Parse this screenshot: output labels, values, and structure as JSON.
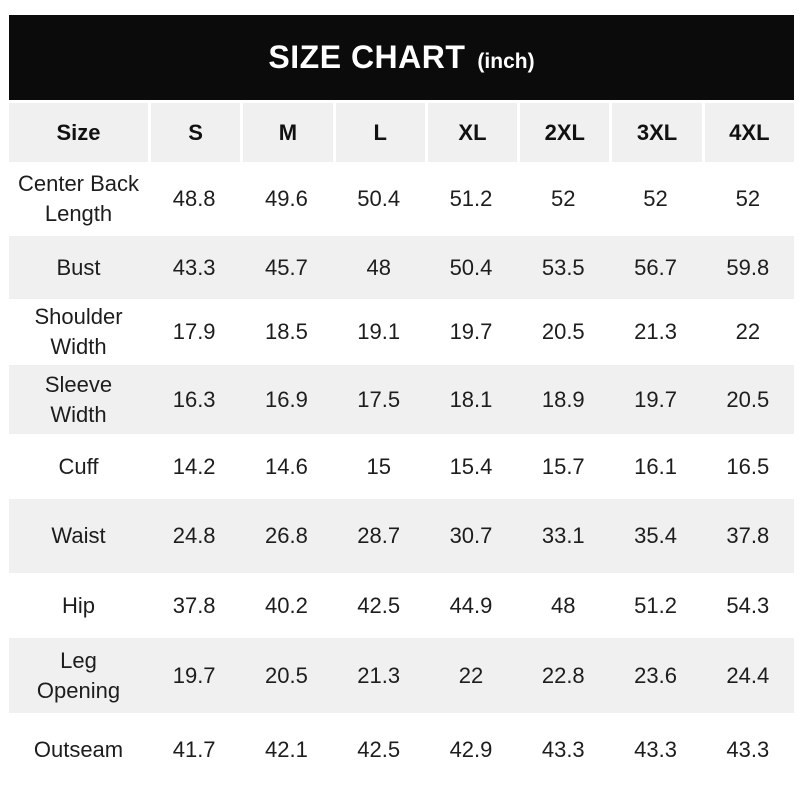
{
  "banner": {
    "title": "SIZE CHART",
    "unit": "(inch)"
  },
  "chart_data": {
    "type": "table",
    "title": "SIZE CHART (inch)",
    "columns": [
      "Size",
      "S",
      "M",
      "L",
      "XL",
      "2XL",
      "3XL",
      "4XL"
    ],
    "rows": [
      {
        "label": "Center Back Length",
        "values": [
          48.8,
          49.6,
          50.4,
          51.2,
          52,
          52,
          52
        ]
      },
      {
        "label": "Bust",
        "values": [
          43.3,
          45.7,
          48,
          50.4,
          53.5,
          56.7,
          59.8
        ]
      },
      {
        "label": "Shoulder Width",
        "values": [
          17.9,
          18.5,
          19.1,
          19.7,
          20.5,
          21.3,
          22
        ]
      },
      {
        "label": "Sleeve Width",
        "values": [
          16.3,
          16.9,
          17.5,
          18.1,
          18.9,
          19.7,
          20.5
        ]
      },
      {
        "label": "Cuff",
        "values": [
          14.2,
          14.6,
          15,
          15.4,
          15.7,
          16.1,
          16.5
        ]
      },
      {
        "label": "Waist",
        "values": [
          24.8,
          26.8,
          28.7,
          30.7,
          33.1,
          35.4,
          37.8
        ]
      },
      {
        "label": "Hip",
        "values": [
          37.8,
          40.2,
          42.5,
          44.9,
          48,
          51.2,
          54.3
        ]
      },
      {
        "label": "Leg Opening",
        "values": [
          19.7,
          20.5,
          21.3,
          22,
          22.8,
          23.6,
          24.4
        ]
      },
      {
        "label": "Outseam",
        "values": [
          41.7,
          42.1,
          42.5,
          42.9,
          43.3,
          43.3,
          43.3
        ]
      }
    ]
  },
  "colors": {
    "banner_bg": "#0b0b0b",
    "banner_text": "#ffffff",
    "alt_row_bg": "#f0f0f0",
    "body_text": "#1d1d1d",
    "page_bg": "#ffffff"
  }
}
